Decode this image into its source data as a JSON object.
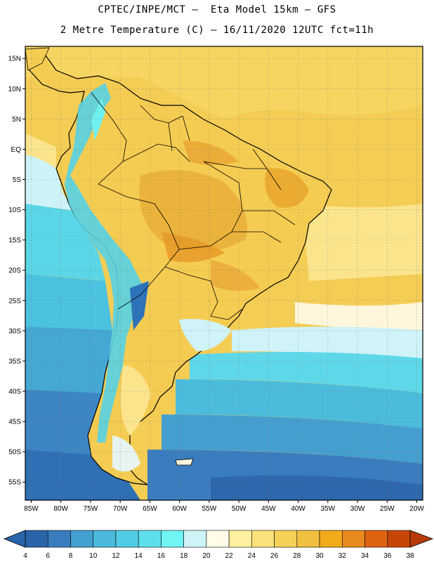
{
  "header": {
    "line1": "CPTEC/INPE/MCT –  Eta Model 15km – GFS",
    "line2": "2 Metre Temperature (C) – 16/11/2020 12UTC fct=11h"
  },
  "map": {
    "lon_range": [
      -86,
      -19
    ],
    "lat_range": [
      -58,
      17
    ],
    "lat_ticks": [
      "15N",
      "10N",
      "5N",
      "EQ",
      "5S",
      "10S",
      "15S",
      "20S",
      "25S",
      "30S",
      "35S",
      "40S",
      "45S",
      "50S",
      "55S"
    ],
    "lat_values": [
      15,
      10,
      5,
      0,
      -5,
      -10,
      -15,
      -20,
      -25,
      -30,
      -35,
      -40,
      -45,
      -50,
      -55
    ],
    "lon_ticks": [
      "85W",
      "80W",
      "75W",
      "70W",
      "65W",
      "60W",
      "55W",
      "50W",
      "45W",
      "40W",
      "35W",
      "30W",
      "25W",
      "20W"
    ],
    "lon_values": [
      -85,
      -80,
      -75,
      -70,
      -65,
      -60,
      -55,
      -50,
      -45,
      -40,
      -35,
      -30,
      -25,
      -20
    ],
    "grid": "dotted"
  },
  "colorbar": {
    "labels": [
      "4",
      "6",
      "8",
      "10",
      "12",
      "14",
      "16",
      "18",
      "20",
      "22",
      "24",
      "26",
      "28",
      "30",
      "32",
      "34",
      "36",
      "38"
    ],
    "colors": [
      "#2a64a8",
      "#3a7dbf",
      "#44a0d0",
      "#4bb9dc",
      "#52cce4",
      "#5ee0ec",
      "#70f4f4",
      "#cff4f8",
      "#fffbe8",
      "#fff0a0",
      "#fbe27a",
      "#f6d157",
      "#f1c040",
      "#f0aa1a",
      "#e88a1e",
      "#de6412",
      "#c74606"
    ],
    "low_color": "#2a64a8",
    "high_color": "#b73a08"
  }
}
